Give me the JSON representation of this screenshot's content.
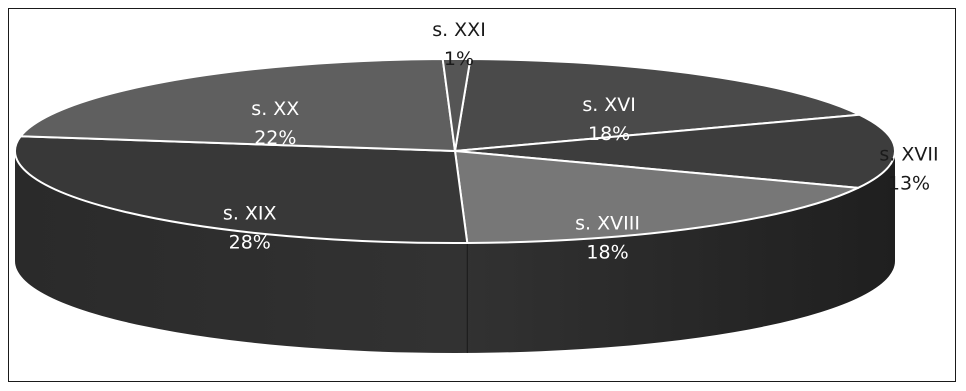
{
  "chart_data": {
    "type": "pie",
    "style": "3d",
    "title": "",
    "categories": [
      "s. XVI",
      "s. XVII",
      "s. XVIII",
      "s. XIX",
      "s. XX",
      "s. XXI"
    ],
    "values": [
      18,
      13,
      18,
      28,
      22,
      1
    ],
    "value_labels": [
      "18%",
      "13%",
      "18%",
      "28%",
      "22%",
      "1%"
    ],
    "legend": "none",
    "colors": {
      "s. XVI": "#4a4a4a",
      "s. XVII": "#3d3d3d",
      "s. XVIII": "#777777",
      "s. XIX": "#383838",
      "s. XX": "#5f5f5f",
      "s. XXI": "#555555"
    },
    "side_color": "#2a2a2a",
    "edge_color": "#ffffff"
  }
}
